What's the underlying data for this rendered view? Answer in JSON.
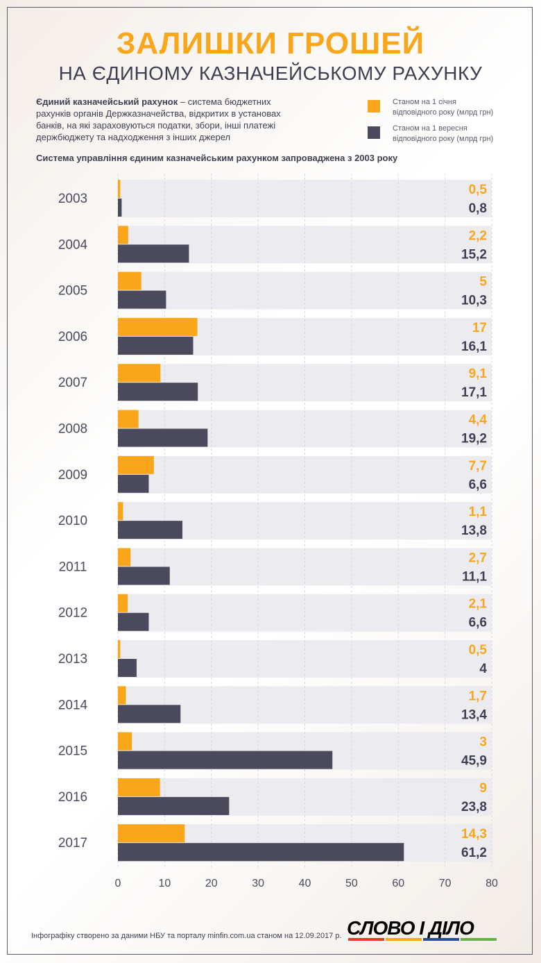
{
  "header": {
    "title": "ЗАЛИШКИ ГРОШЕЙ",
    "subtitle": "НА ЄДИНОМУ КАЗНАЧЕЙСЬКОМУ РАХУНКУ"
  },
  "description": {
    "term": "Єдиний казначейський рахунок",
    "text": " – система бюджетних рахунків органів Держказначейства, відкритих в установах банків, на які зараховуються податки, збори, інші платежі держбюджету та надходження з інших джерел"
  },
  "intro": "Система управління єдиним казначейським рахунком запроваджена з 2003 року",
  "legend": [
    {
      "label": "Станом на 1 січня відповідного року (млрд грн)",
      "color": "#f9a61b"
    },
    {
      "label": "Станом на 1 вересня відповідного року (млрд грн)",
      "color": "#4a4a5c"
    }
  ],
  "chart_data": {
    "type": "bar",
    "orientation": "horizontal",
    "categories": [
      "2003",
      "2004",
      "2005",
      "2006",
      "2007",
      "2008",
      "2009",
      "2010",
      "2011",
      "2012",
      "2013",
      "2014",
      "2015",
      "2016",
      "2017"
    ],
    "series": [
      {
        "name": "Станом на 1 січня відповідного року (млрд грн)",
        "color": "#f9a61b",
        "values": [
          0.5,
          2.2,
          5,
          17,
          9.1,
          4.4,
          7.7,
          1.1,
          2.7,
          2.1,
          0.5,
          1.7,
          3,
          9,
          14.3
        ],
        "labels": [
          "0,5",
          "2,2",
          "5",
          "17",
          "9,1",
          "4,4",
          "7,7",
          "1,1",
          "2,7",
          "2,1",
          "0,5",
          "1,7",
          "3",
          "9",
          "14,3"
        ]
      },
      {
        "name": "Станом на 1 вересня відповідного року (млрд грн)",
        "color": "#4a4a5c",
        "values": [
          0.8,
          15.2,
          10.3,
          16.1,
          17.1,
          19.2,
          6.6,
          13.8,
          11.1,
          6.6,
          4,
          13.4,
          45.9,
          23.8,
          61.2
        ],
        "labels": [
          "0,8",
          "15,2",
          "10,3",
          "16,1",
          "17,1",
          "19,2",
          "6,6",
          "13,8",
          "11,1",
          "6,6",
          "4",
          "13,4",
          "45,9",
          "23,8",
          "61,2"
        ]
      }
    ],
    "xlim": [
      0,
      80
    ],
    "xticks": [
      "0",
      "10",
      "20",
      "30",
      "40",
      "50",
      "60",
      "70",
      "80"
    ],
    "grid": true
  },
  "footer": "Інфографіку створено за даними НБУ та порталу minfin.com.ua станом на 12.09.2017 р.",
  "logo": {
    "text": "СЛОВО І ДІЛО"
  }
}
